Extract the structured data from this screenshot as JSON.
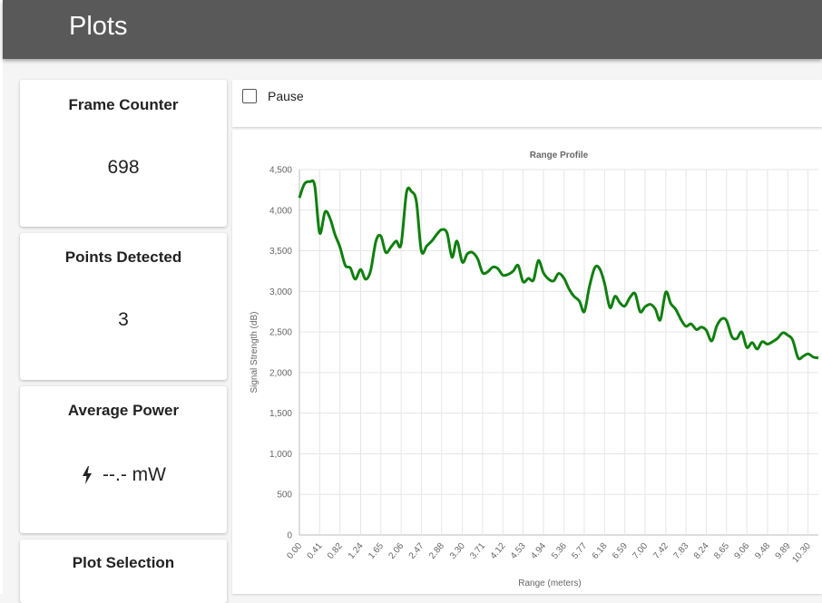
{
  "header": {
    "title": "Plots"
  },
  "cards": {
    "frame_counter": {
      "title": "Frame Counter",
      "value": "698"
    },
    "points_detected": {
      "title": "Points Detected",
      "value": "3"
    },
    "average_power": {
      "title": "Average Power",
      "value": "--.- mW",
      "icon": "lightning-bolt-icon"
    },
    "plot_selection": {
      "title": "Plot Selection"
    }
  },
  "pause": {
    "label": "Pause",
    "checked": false
  },
  "colors": {
    "appbar": "#595959",
    "series": "#0f7f0f"
  },
  "chart_data": {
    "type": "line",
    "title": "Range Profile",
    "xlabel": "Range (meters)",
    "ylabel": "Signal Strength (dB)",
    "ylim": [
      0,
      4500
    ],
    "yticks": [
      "0",
      "500",
      "1,000",
      "1,500",
      "2,000",
      "2,500",
      "3,000",
      "3,500",
      "4,000",
      "4,500"
    ],
    "xticks": [
      "0.00",
      "0.41",
      "0.82",
      "1.24",
      "1.65",
      "2.06",
      "2.47",
      "2.88",
      "3.30",
      "3.71",
      "4.12",
      "4.53",
      "4.94",
      "5.36",
      "5.77",
      "6.18",
      "6.59",
      "7.00",
      "7.42",
      "7.83",
      "8.24",
      "8.65",
      "9.06",
      "9.48",
      "9.89",
      "10.30"
    ],
    "grid": true,
    "series": [
      {
        "color": "#0f7f0f",
        "x": [
          0.0,
          0.1,
          0.21,
          0.31,
          0.41,
          0.52,
          0.62,
          0.72,
          0.82,
          0.93,
          1.03,
          1.13,
          1.24,
          1.34,
          1.44,
          1.55,
          1.65,
          1.75,
          1.86,
          1.96,
          2.06,
          2.17,
          2.27,
          2.37,
          2.47,
          2.58,
          2.68,
          2.78,
          2.88,
          2.99,
          3.09,
          3.19,
          3.3,
          3.4,
          3.5,
          3.61,
          3.71,
          3.81,
          3.92,
          4.02,
          4.12,
          4.23,
          4.33,
          4.43,
          4.53,
          4.64,
          4.74,
          4.84,
          4.94,
          5.05,
          5.15,
          5.25,
          5.36,
          5.46,
          5.56,
          5.67,
          5.77,
          5.87,
          5.98,
          6.08,
          6.18,
          6.29,
          6.39,
          6.49,
          6.59,
          6.7,
          6.8,
          6.9,
          7.0,
          7.11,
          7.21,
          7.31,
          7.42,
          7.52,
          7.62,
          7.73,
          7.83,
          7.93,
          8.04,
          8.14,
          8.24,
          8.35,
          8.45,
          8.55,
          8.65,
          8.76,
          8.86,
          8.96,
          9.06,
          9.17,
          9.27,
          9.37,
          9.48,
          9.58,
          9.68,
          9.79,
          9.89,
          9.99,
          10.1,
          10.2,
          10.3,
          10.41,
          10.51
        ],
        "y": [
          4150,
          4320,
          4350,
          4300,
          3720,
          3980,
          3900,
          3700,
          3550,
          3320,
          3290,
          3150,
          3270,
          3150,
          3250,
          3620,
          3680,
          3480,
          3550,
          3620,
          3580,
          4220,
          4230,
          4100,
          3500,
          3560,
          3620,
          3700,
          3760,
          3720,
          3420,
          3620,
          3360,
          3460,
          3480,
          3400,
          3230,
          3240,
          3300,
          3280,
          3200,
          3210,
          3250,
          3320,
          3120,
          3160,
          3140,
          3380,
          3230,
          3150,
          3130,
          3220,
          3160,
          3030,
          2940,
          2880,
          2750,
          3050,
          3290,
          3280,
          3100,
          2800,
          2940,
          2860,
          2820,
          2930,
          2970,
          2750,
          2810,
          2840,
          2780,
          2650,
          2990,
          2850,
          2780,
          2650,
          2570,
          2600,
          2530,
          2560,
          2520,
          2390,
          2570,
          2660,
          2640,
          2440,
          2420,
          2500,
          2310,
          2370,
          2290,
          2380,
          2350,
          2380,
          2420,
          2490,
          2460,
          2400,
          2180,
          2200,
          2230,
          2190,
          2180
        ]
      }
    ]
  }
}
